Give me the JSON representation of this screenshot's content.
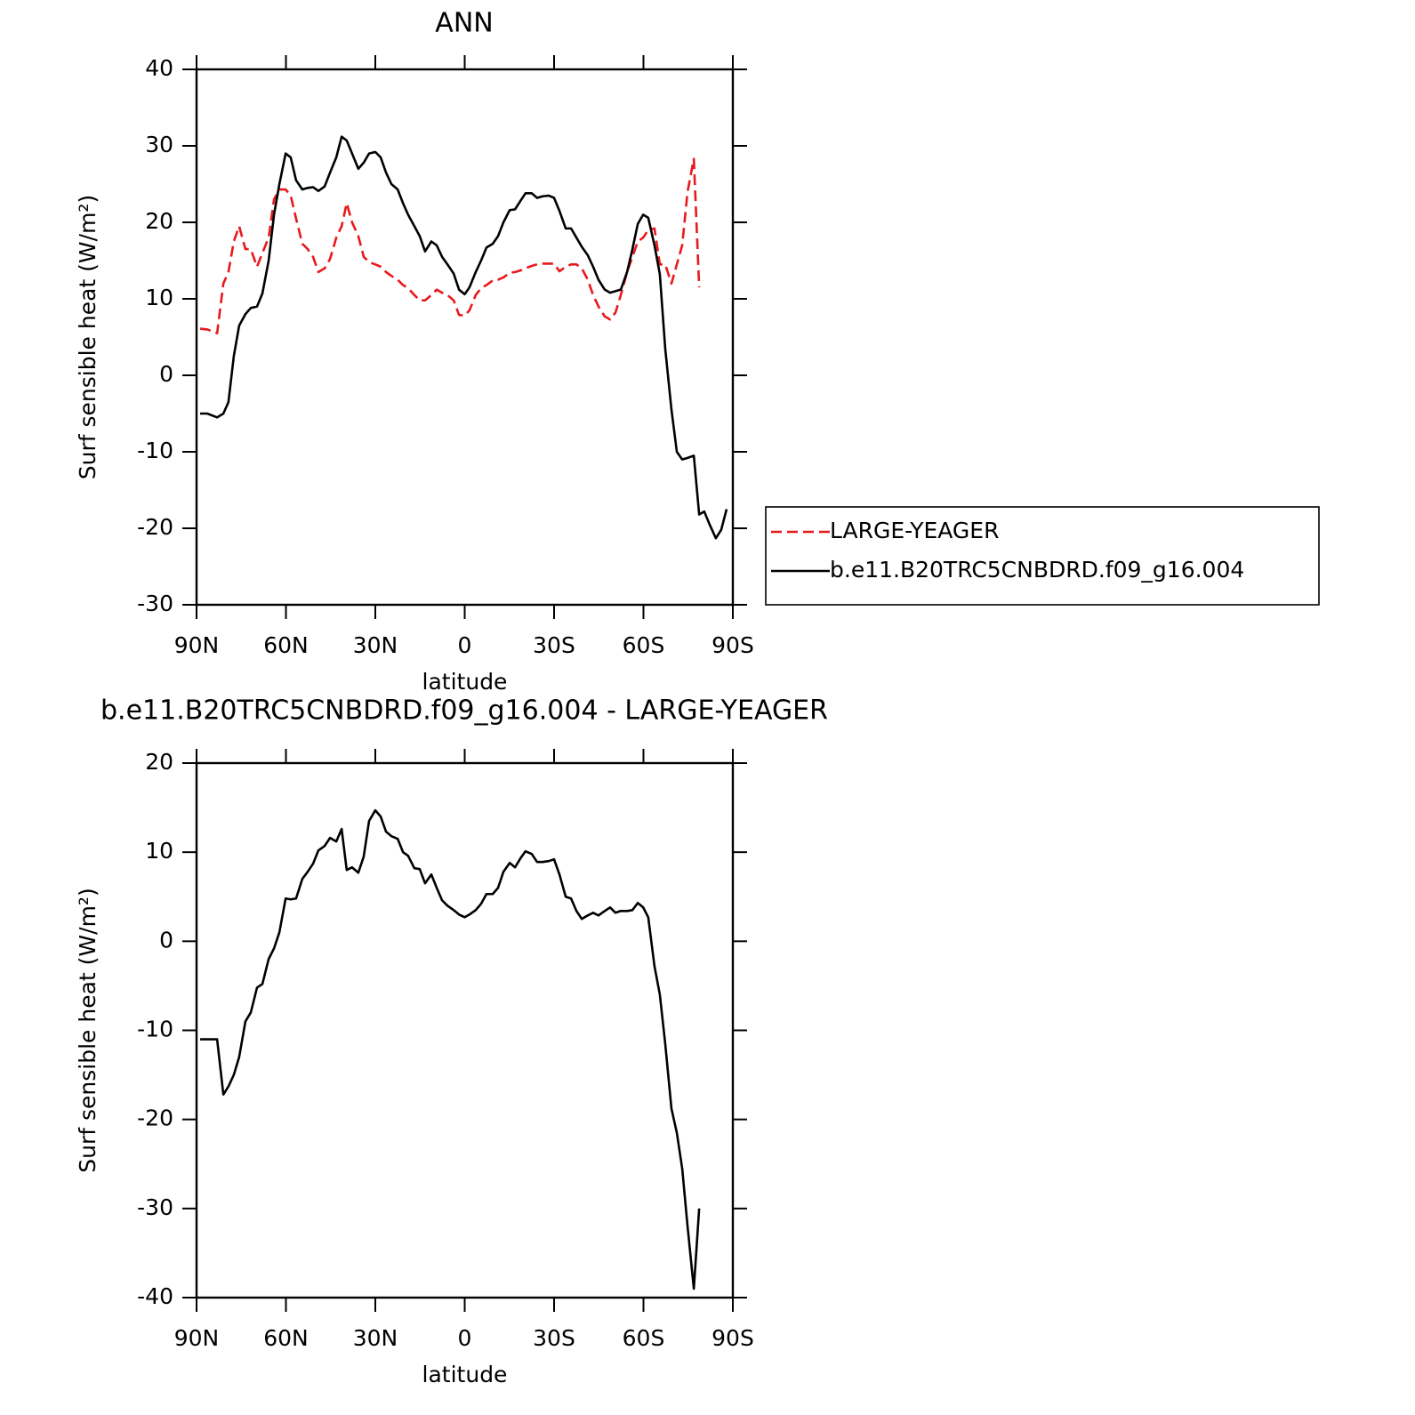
{
  "chart_data": [
    {
      "type": "line",
      "title": "ANN",
      "xlabel": "latitude",
      "ylabel": "Surf sensible heat (W/m²)",
      "xlim": [
        90,
        -90
      ],
      "xticks": [
        {
          "value": 90,
          "label": "90N"
        },
        {
          "value": 60,
          "label": "60N"
        },
        {
          "value": 30,
          "label": "30N"
        },
        0,
        {
          "value": -30,
          "label": "30S"
        },
        {
          "value": -60,
          "label": "60S"
        },
        {
          "value": -90,
          "label": "90S"
        }
      ],
      "ylim": [
        -30,
        40
      ],
      "yticks": [
        -30,
        -20,
        -10,
        0,
        10,
        20,
        30,
        40
      ],
      "legend": "right",
      "x": [
        88.8,
        86.4,
        83.1,
        81.0,
        79.3,
        77.5,
        75.7,
        73.6,
        71.8,
        69.7,
        67.9,
        65.8,
        64.0,
        62.2,
        60.1,
        58.4,
        56.6,
        54.5,
        52.7,
        50.9,
        49.1,
        47.0,
        45.2,
        43.1,
        41.3,
        39.6,
        37.8,
        35.7,
        33.9,
        32.1,
        30.0,
        28.2,
        26.4,
        24.6,
        22.5,
        20.7,
        19.0,
        16.9,
        15.1,
        13.3,
        11.2,
        9.4,
        7.6,
        5.8,
        3.7,
        1.9,
        0,
        -1.6,
        -3.7,
        -5.5,
        -7.3,
        -9.4,
        -11.2,
        -13.0,
        -15.1,
        -16.9,
        -18.7,
        -20.4,
        -22.5,
        -24.3,
        -26.1,
        -28.2,
        -30.0,
        -31.8,
        -33.9,
        -35.7,
        -37.5,
        -39.3,
        -41.3,
        -43.1,
        -44.9,
        -47.0,
        -48.8,
        -50.6,
        -52.4,
        -54.5,
        -56.3,
        -58.1,
        -59.9,
        -61.6,
        -63.7,
        -65.5,
        -67.3,
        -69.4,
        -71.2,
        -73.0,
        -74.8,
        -76.9,
        -78.7,
        -80.4,
        -82.2,
        -84.3,
        -86.1,
        -87.9
      ],
      "series": [
        {
          "name": "LARGE-YEAGER",
          "color": "#e8191c",
          "linestyle": "dashed",
          "values": [
            6.1,
            6,
            5.5,
            12,
            13.5,
            17.5,
            19.5,
            16.5,
            16.5,
            14.2,
            16,
            18,
            23,
            24.3,
            24.3,
            23.5,
            20.5,
            17.2,
            16.5,
            15.5,
            13.5,
            14,
            15.2,
            18,
            19.5,
            22.5,
            20,
            18.2,
            15.5,
            14.8,
            14.5,
            14.2,
            13.5,
            13,
            12.5,
            11.8,
            11.4,
            10.5,
            9.8,
            9.8,
            10.5,
            11.2,
            10.8,
            10.5,
            9.8,
            7.9,
            7.8,
            8.5,
            10.5,
            11.4,
            11.8,
            12.4,
            12.5,
            12.8,
            13.4,
            13.5,
            13.7,
            14,
            14.3,
            14.5,
            14.6,
            14.6,
            14.6,
            13.6,
            14.2,
            14.5,
            14.5,
            14,
            12.5,
            10.5,
            9,
            7.7,
            7.3,
            8.2,
            10.5,
            13.5,
            15.5,
            17.5,
            18,
            19,
            19.2,
            14.5,
            14.5,
            12,
            14.5,
            17,
            24,
            28.3,
            11.5,
            null,
            null,
            null,
            null,
            null
          ]
        },
        {
          "name": "b.e11.B20TRC5CNBDRD.f09_g16.004",
          "color": "#000000",
          "linestyle": "solid",
          "values": [
            -5,
            -5,
            -5.5,
            -5,
            -3.5,
            2.5,
            6.5,
            8,
            8.8,
            9,
            10.7,
            15,
            21,
            25,
            29,
            28.5,
            25.5,
            24.3,
            24.5,
            24.6,
            24.1,
            24.7,
            26.5,
            28.5,
            31.2,
            30.7,
            29,
            27,
            27.8,
            29,
            29.2,
            28.5,
            26.5,
            25,
            24.3,
            22.5,
            21,
            19.5,
            18.2,
            16.2,
            17.5,
            17,
            15.5,
            14.5,
            13.3,
            11.2,
            10.6,
            11.5,
            13.5,
            15,
            16.7,
            17.2,
            18.2,
            20,
            21.6,
            21.7,
            22.8,
            23.8,
            23.8,
            23.2,
            23.4,
            23.5,
            23.2,
            21.5,
            19.2,
            19.2,
            18,
            16.8,
            15.7,
            14.2,
            12.5,
            11.2,
            10.8,
            11,
            11.2,
            13.5,
            16.5,
            19.8,
            21,
            20.6,
            17,
            13.2,
            3.5,
            -4.5,
            -10,
            -11,
            -10.8,
            -10.5,
            -18.2,
            -17.8,
            -19.5,
            -21.3,
            -20.2,
            -17.5
          ]
        }
      ]
    },
    {
      "type": "line",
      "title": "b.e11.B20TRC5CNBDRD.f09_g16.004 - LARGE-YEAGER",
      "xlabel": "latitude",
      "ylabel": "Surf sensible heat (W/m²)",
      "xlim": [
        90,
        -90
      ],
      "xticks": [
        {
          "value": 90,
          "label": "90N"
        },
        {
          "value": 60,
          "label": "60N"
        },
        {
          "value": 30,
          "label": "30N"
        },
        0,
        {
          "value": -30,
          "label": "30S"
        },
        {
          "value": -60,
          "label": "60S"
        },
        {
          "value": -90,
          "label": "90S"
        }
      ],
      "ylim": [
        -40,
        20
      ],
      "yticks": [
        -40,
        -30,
        -20,
        -10,
        0,
        10,
        20
      ],
      "x": [
        88.8,
        86.4,
        83.1,
        81.0,
        79.3,
        77.5,
        75.7,
        73.6,
        71.8,
        69.7,
        67.9,
        65.8,
        64.0,
        62.2,
        60.1,
        58.4,
        56.6,
        54.5,
        52.7,
        50.9,
        49.1,
        47.0,
        45.2,
        43.1,
        41.3,
        39.6,
        37.8,
        35.7,
        33.9,
        32.1,
        30.0,
        28.2,
        26.4,
        24.6,
        22.5,
        20.7,
        19.0,
        16.9,
        15.1,
        13.3,
        11.2,
        9.4,
        7.6,
        5.8,
        3.7,
        1.9,
        0,
        -1.6,
        -3.7,
        -5.5,
        -7.3,
        -9.4,
        -11.2,
        -13.0,
        -15.1,
        -16.9,
        -18.7,
        -20.4,
        -22.5,
        -24.3,
        -26.1,
        -28.2,
        -30.0,
        -31.8,
        -33.9,
        -35.7,
        -37.5,
        -39.3,
        -41.3,
        -43.1,
        -44.9,
        -47.0,
        -48.8,
        -50.6,
        -52.4,
        -54.5,
        -56.3,
        -58.1,
        -59.9,
        -61.6,
        -63.7,
        -65.5,
        -67.3,
        -69.4,
        -71.2,
        -73.0,
        -74.8,
        -76.9,
        -78.7,
        -80.4,
        -82.2,
        -84.3,
        -86.1,
        -87.9
      ],
      "color": "#000000",
      "values": [
        -11,
        -11,
        -11,
        -17.2,
        -16.3,
        -15,
        -13,
        -9,
        -8,
        -5.2,
        -4.8,
        -2,
        -0.8,
        1,
        4.8,
        4.7,
        4.8,
        7,
        7.8,
        8.7,
        10.2,
        10.7,
        11.6,
        11.2,
        12.6,
        8,
        8.3,
        7.7,
        9.5,
        13.5,
        14.7,
        14,
        12.3,
        11.8,
        11.5,
        10,
        9.6,
        8.2,
        8.1,
        6.5,
        7.5,
        6,
        4.6,
        4,
        3.5,
        3,
        2.7,
        3,
        3.5,
        4.2,
        5.3,
        5.3,
        6,
        7.8,
        8.8,
        8.3,
        9.3,
        10.1,
        9.8,
        8.9,
        8.9,
        9,
        9.2,
        7.5,
        5,
        4.8,
        3.4,
        2.5,
        2.9,
        3.2,
        2.9,
        3.4,
        3.8,
        3.2,
        3.4,
        3.4,
        3.5,
        4.3,
        3.8,
        2.7,
        -2.8,
        -6,
        -11.5,
        -18.8,
        -21.5,
        -25.5,
        -32,
        -39,
        -30,
        null,
        null,
        null,
        null,
        null
      ]
    }
  ]
}
